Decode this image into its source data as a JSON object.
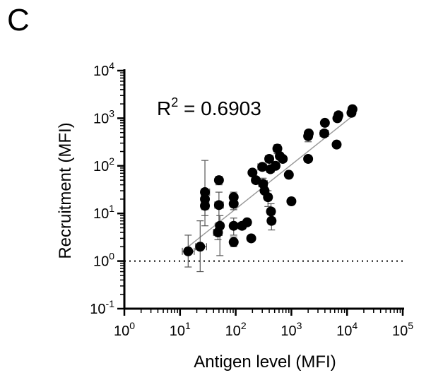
{
  "panel_label": "C",
  "chart_data": {
    "type": "scatter",
    "xlabel": "Antigen level (MFI)",
    "ylabel": "Recruitment (MFI)",
    "annotation": {
      "base": "R",
      "sup": "2",
      "rest": " = 0.6903"
    },
    "x_scale": "log",
    "y_scale": "log",
    "xlim": [
      1,
      100000
    ],
    "ylim": [
      0.1,
      10000
    ],
    "x_ticks": [
      {
        "base": "10",
        "exp": "0",
        "value": 1
      },
      {
        "base": "10",
        "exp": "1",
        "value": 10
      },
      {
        "base": "10",
        "exp": "2",
        "value": 100
      },
      {
        "base": "10",
        "exp": "3",
        "value": 1000
      },
      {
        "base": "10",
        "exp": "4",
        "value": 10000
      },
      {
        "base": "10",
        "exp": "5",
        "value": 100000
      }
    ],
    "y_ticks": [
      {
        "base": "10",
        "exp": "-1",
        "value": 0.1
      },
      {
        "base": "10",
        "exp": "0",
        "value": 1
      },
      {
        "base": "10",
        "exp": "1",
        "value": 10
      },
      {
        "base": "10",
        "exp": "2",
        "value": 100
      },
      {
        "base": "10",
        "exp": "3",
        "value": 1000
      },
      {
        "base": "10",
        "exp": "4",
        "value": 10000
      }
    ],
    "reference_line": {
      "y": 1,
      "style": "dotted"
    },
    "fit_line": {
      "x": [
        14,
        13000
      ],
      "y": [
        2.0,
        1150
      ]
    },
    "grid": false,
    "points": [
      {
        "x": 14,
        "y": 1.6,
        "xlo": 11,
        "xhi": 18,
        "ylo": 0.75,
        "yhi": 3.5
      },
      {
        "x": 23,
        "y": 2.0,
        "xlo": 19,
        "xhi": 30,
        "ylo": 0.6,
        "yhi": 7.0
      },
      {
        "x": 28,
        "y": 28,
        "xlo": 24,
        "xhi": 34,
        "ylo": 5.5,
        "yhi": 130
      },
      {
        "x": 28,
        "y": 20,
        "xlo": 24,
        "xhi": 33,
        "ylo": 12,
        "yhi": 28
      },
      {
        "x": 28,
        "y": 14.5,
        "xlo": 24,
        "xhi": 33,
        "ylo": 9,
        "yhi": 20
      },
      {
        "x": 48,
        "y": 4.0,
        "xlo": 40,
        "xhi": 57,
        "ylo": 2.8,
        "yhi": 6.0
      },
      {
        "x": 50,
        "y": 15,
        "xlo": 42,
        "xhi": 60,
        "ylo": 4,
        "yhi": 28
      },
      {
        "x": 50,
        "y": 50,
        "xlo": 44,
        "xhi": 57,
        "ylo": 40,
        "yhi": 60
      },
      {
        "x": 52,
        "y": 5.5,
        "xlo": 44,
        "xhi": 60,
        "ylo": 1.3,
        "yhi": 9
      },
      {
        "x": 92,
        "y": 2.5,
        "xlo": 80,
        "xhi": 104,
        "ylo": 2.0,
        "yhi": 3.2
      },
      {
        "x": 92,
        "y": 5.5,
        "xlo": 80,
        "xhi": 104,
        "ylo": 3.5,
        "yhi": 8
      },
      {
        "x": 92,
        "y": 16,
        "xlo": 80,
        "xhi": 104,
        "ylo": 12,
        "yhi": 21
      },
      {
        "x": 92,
        "y": 22,
        "xlo": 80,
        "xhi": 104,
        "ylo": 17,
        "yhi": 28
      },
      {
        "x": 130,
        "y": 5.5,
        "xlo": 112,
        "xhi": 150
      },
      {
        "x": 160,
        "y": 6.5,
        "xlo": 140,
        "xhi": 185
      },
      {
        "x": 190,
        "y": 3.0
      },
      {
        "x": 200,
        "y": 72,
        "xlo": 175,
        "xhi": 228
      },
      {
        "x": 230,
        "y": 50
      },
      {
        "x": 300,
        "y": 95,
        "xlo": 250,
        "xhi": 360
      },
      {
        "x": 310,
        "y": 42,
        "xlo": 260,
        "xhi": 370,
        "ylo": 30,
        "yhi": 55
      },
      {
        "x": 330,
        "y": 30
      },
      {
        "x": 380,
        "y": 22,
        "xlo": 330,
        "xhi": 440,
        "ylo": 14,
        "yhi": 30
      },
      {
        "x": 400,
        "y": 140,
        "xlo": 340,
        "xhi": 470
      },
      {
        "x": 420,
        "y": 85,
        "xlo": 360,
        "xhi": 490
      },
      {
        "x": 430,
        "y": 11,
        "xlo": 370,
        "xhi": 500,
        "ylo": 7,
        "yhi": 16
      },
      {
        "x": 440,
        "y": 7.0,
        "xlo": 380,
        "xhi": 510,
        "ylo": 4.5,
        "yhi": 10
      },
      {
        "x": 520,
        "y": 100
      },
      {
        "x": 560,
        "y": 230,
        "xlo": 480,
        "xhi": 650,
        "ylo": 180,
        "yhi": 280
      },
      {
        "x": 620,
        "y": 160
      },
      {
        "x": 700,
        "y": 140
      },
      {
        "x": 900,
        "y": 65
      },
      {
        "x": 1000,
        "y": 18
      },
      {
        "x": 2000,
        "y": 140
      },
      {
        "x": 2000,
        "y": 420,
        "ylo": 320,
        "yhi": 520
      },
      {
        "x": 2050,
        "y": 480
      },
      {
        "x": 3900,
        "y": 480,
        "xlo": 3300,
        "xhi": 4600
      },
      {
        "x": 4000,
        "y": 800
      },
      {
        "x": 6500,
        "y": 280
      },
      {
        "x": 6700,
        "y": 1000
      },
      {
        "x": 7000,
        "y": 1150,
        "xlo": 6000,
        "xhi": 8200
      },
      {
        "x": 12000,
        "y": 1300,
        "xlo": 10500,
        "xhi": 13800
      },
      {
        "x": 12500,
        "y": 1550
      }
    ]
  }
}
